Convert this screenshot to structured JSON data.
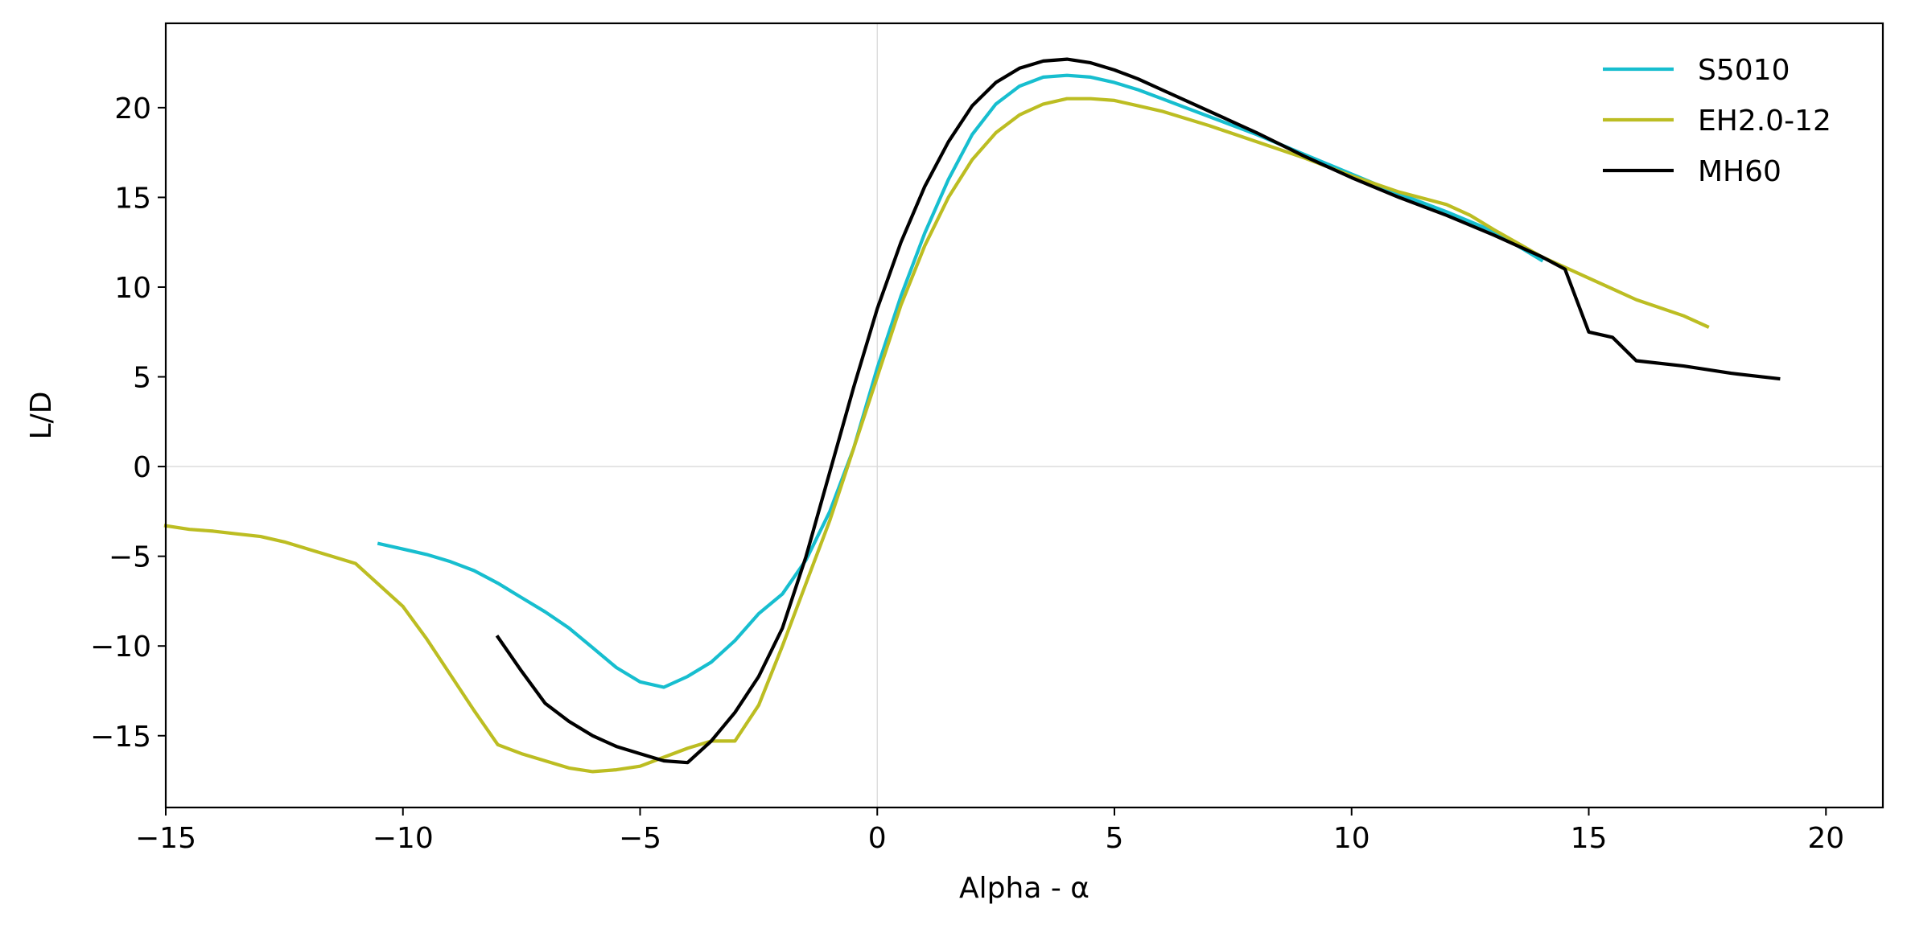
{
  "chart_data": {
    "type": "line",
    "title": "",
    "xlabel": "Alpha - α",
    "ylabel": "L/D",
    "xlim": [
      -15,
      21.2
    ],
    "ylim": [
      -19,
      24.7
    ],
    "xticks": [
      -15,
      -10,
      -5,
      0,
      5,
      10,
      15,
      20
    ],
    "yticks": [
      -15,
      -10,
      -5,
      0,
      5,
      10,
      15,
      20
    ],
    "xtick_labels": [
      "−15",
      "−10",
      "−5",
      "0",
      "5",
      "10",
      "15",
      "20"
    ],
    "ytick_labels": [
      "−15",
      "−10",
      "−5",
      "0",
      "5",
      "10",
      "15",
      "20"
    ],
    "zero_lines": true,
    "legend": "top-right",
    "series": [
      {
        "name": "S5010",
        "color": "#17becf",
        "points": [
          [
            -10.5,
            -4.3
          ],
          [
            -10,
            -4.6
          ],
          [
            -9.5,
            -4.9
          ],
          [
            -9,
            -5.3
          ],
          [
            -8.5,
            -5.8
          ],
          [
            -8,
            -6.5
          ],
          [
            -7.5,
            -7.3
          ],
          [
            -7,
            -8.1
          ],
          [
            -6.5,
            -9.0
          ],
          [
            -6,
            -10.1
          ],
          [
            -5.5,
            -11.2
          ],
          [
            -5,
            -12.0
          ],
          [
            -4.5,
            -12.3
          ],
          [
            -4,
            -11.7
          ],
          [
            -3.5,
            -10.9
          ],
          [
            -3,
            -9.7
          ],
          [
            -2.5,
            -8.2
          ],
          [
            -2,
            -7.1
          ],
          [
            -1.5,
            -5.2
          ],
          [
            -1,
            -2.5
          ],
          [
            -0.5,
            1.0
          ],
          [
            0,
            5.5
          ],
          [
            0.5,
            9.5
          ],
          [
            1,
            13.0
          ],
          [
            1.5,
            16.0
          ],
          [
            2,
            18.5
          ],
          [
            2.5,
            20.2
          ],
          [
            3,
            21.2
          ],
          [
            3.5,
            21.7
          ],
          [
            4,
            21.8
          ],
          [
            4.5,
            21.7
          ],
          [
            5,
            21.4
          ],
          [
            5.5,
            21.0
          ],
          [
            6,
            20.5
          ],
          [
            7,
            19.5
          ],
          [
            8,
            18.5
          ],
          [
            9,
            17.4
          ],
          [
            10,
            16.3
          ],
          [
            11,
            15.2
          ],
          [
            12,
            14.2
          ],
          [
            13,
            13.1
          ],
          [
            14,
            11.5
          ]
        ]
      },
      {
        "name": "EH2.0-12",
        "color": "#bcbd22",
        "points": [
          [
            -15,
            -3.3
          ],
          [
            -14.5,
            -3.5
          ],
          [
            -14,
            -3.6
          ],
          [
            -13.5,
            -3.75
          ],
          [
            -13,
            -3.9
          ],
          [
            -12.5,
            -4.2
          ],
          [
            -12,
            -4.6
          ],
          [
            -11.5,
            -5.0
          ],
          [
            -11,
            -5.4
          ],
          [
            -10.5,
            -6.6
          ],
          [
            -10,
            -7.8
          ],
          [
            -9.5,
            -9.6
          ],
          [
            -9,
            -11.6
          ],
          [
            -8.5,
            -13.6
          ],
          [
            -8,
            -15.5
          ],
          [
            -7.5,
            -16.0
          ],
          [
            -7,
            -16.4
          ],
          [
            -6.5,
            -16.8
          ],
          [
            -6,
            -17.0
          ],
          [
            -5.5,
            -16.9
          ],
          [
            -5,
            -16.7
          ],
          [
            -4.5,
            -16.2
          ],
          [
            -4,
            -15.7
          ],
          [
            -3.5,
            -15.3
          ],
          [
            -3,
            -15.3
          ],
          [
            -2.5,
            -13.3
          ],
          [
            -2,
            -10.0
          ],
          [
            -1.5,
            -6.5
          ],
          [
            -1,
            -3.0
          ],
          [
            -0.5,
            1.0
          ],
          [
            0,
            5.0
          ],
          [
            0.5,
            9.0
          ],
          [
            1,
            12.3
          ],
          [
            1.5,
            15.0
          ],
          [
            2,
            17.1
          ],
          [
            2.5,
            18.6
          ],
          [
            3,
            19.6
          ],
          [
            3.5,
            20.2
          ],
          [
            4,
            20.5
          ],
          [
            4.5,
            20.5
          ],
          [
            5,
            20.4
          ],
          [
            5.5,
            20.1
          ],
          [
            6,
            19.8
          ],
          [
            7,
            19.0
          ],
          [
            8,
            18.1
          ],
          [
            9,
            17.2
          ],
          [
            10,
            16.2
          ],
          [
            11,
            15.3
          ],
          [
            12,
            14.6
          ],
          [
            12.5,
            14.0
          ],
          [
            13,
            13.2
          ],
          [
            14,
            11.7
          ],
          [
            15,
            10.5
          ],
          [
            15.5,
            9.9
          ],
          [
            16,
            9.3
          ],
          [
            17,
            8.4
          ],
          [
            17.5,
            7.8
          ]
        ]
      },
      {
        "name": "MH60",
        "color": "#000000",
        "points": [
          [
            -8,
            -9.5
          ],
          [
            -7.5,
            -11.4
          ],
          [
            -7,
            -13.2
          ],
          [
            -6.5,
            -14.2
          ],
          [
            -6,
            -15.0
          ],
          [
            -5.5,
            -15.6
          ],
          [
            -5,
            -16.0
          ],
          [
            -4.5,
            -16.4
          ],
          [
            -4,
            -16.5
          ],
          [
            -3.5,
            -15.3
          ],
          [
            -3,
            -13.7
          ],
          [
            -2.5,
            -11.7
          ],
          [
            -2,
            -9.0
          ],
          [
            -1.5,
            -5.0
          ],
          [
            -1,
            -0.3
          ],
          [
            -0.5,
            4.4
          ],
          [
            0,
            8.8
          ],
          [
            0.5,
            12.5
          ],
          [
            1,
            15.6
          ],
          [
            1.5,
            18.1
          ],
          [
            2,
            20.1
          ],
          [
            2.5,
            21.4
          ],
          [
            3,
            22.2
          ],
          [
            3.5,
            22.6
          ],
          [
            4,
            22.7
          ],
          [
            4.5,
            22.5
          ],
          [
            5,
            22.1
          ],
          [
            5.5,
            21.6
          ],
          [
            6,
            21.0
          ],
          [
            7,
            19.8
          ],
          [
            8,
            18.6
          ],
          [
            9,
            17.3
          ],
          [
            10,
            16.1
          ],
          [
            11,
            15.0
          ],
          [
            12,
            14.0
          ],
          [
            13,
            12.9
          ],
          [
            14,
            11.7
          ],
          [
            14.5,
            11.0
          ],
          [
            15,
            7.5
          ],
          [
            15.5,
            7.2
          ],
          [
            16,
            5.9
          ],
          [
            17,
            5.6
          ],
          [
            17.5,
            5.4
          ],
          [
            18,
            5.2
          ],
          [
            19,
            4.9
          ]
        ]
      }
    ]
  }
}
